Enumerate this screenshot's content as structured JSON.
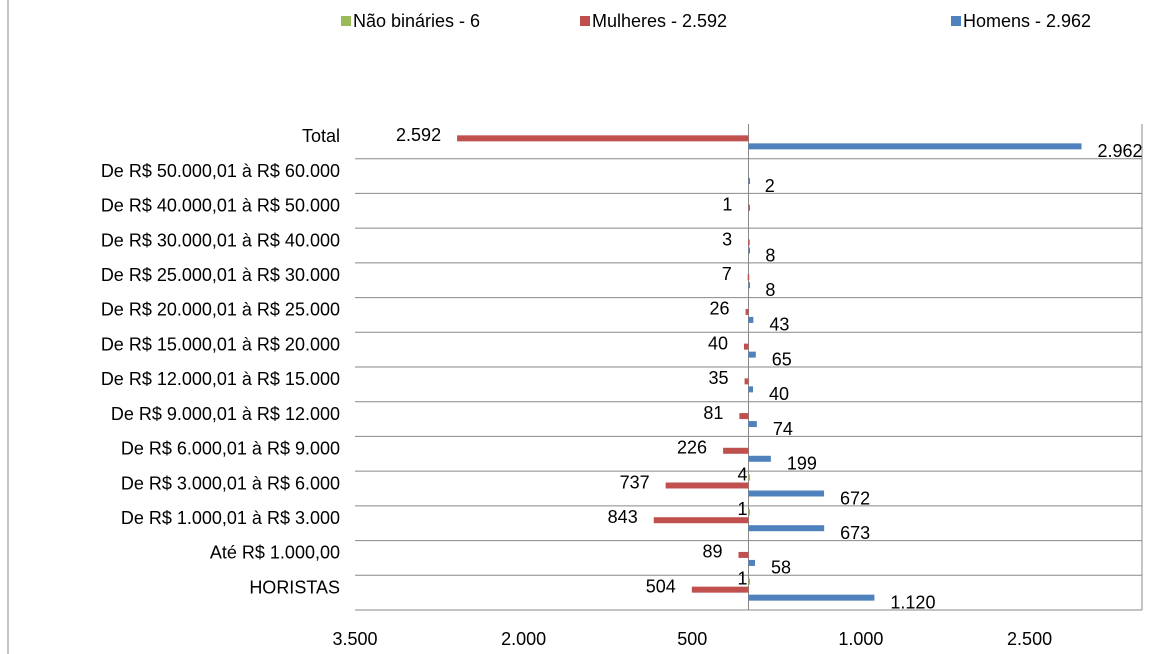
{
  "chart_data": {
    "type": "butterfly-bar",
    "categories": [
      "Total",
      "De R$ 50.000,01 à R$ 60.000",
      "De R$ 40.000,01 à R$ 50.000",
      "De R$ 30.000,01 à R$ 40.000",
      "De R$ 25.000,01 à R$ 30.000",
      "De R$ 20.000,01 à R$ 25.000",
      "De R$ 15.000,01 à R$ 20.000",
      "De R$ 12.000,01 à R$ 15.000",
      "De R$ 9.000,01 à R$ 12.000",
      "De R$ 6.000,01 à R$ 9.000",
      "De R$ 3.000,01 à R$ 6.000",
      "De R$ 1.000,01 à R$ 3.000",
      "Até R$ 1.000,00",
      "HORISTAS"
    ],
    "series": [
      {
        "name": "Não bináries - 6",
        "color": "#9bbb59",
        "values": [
          null,
          null,
          null,
          null,
          null,
          null,
          null,
          null,
          null,
          null,
          4,
          1,
          null,
          1
        ]
      },
      {
        "name": "Mulheres - 2.592",
        "color": "#c0504d",
        "values": [
          -2592,
          null,
          -1,
          -3,
          -7,
          -26,
          -40,
          -35,
          -81,
          -226,
          -737,
          -843,
          -89,
          -504
        ],
        "value_labels": [
          "2.592",
          null,
          "1",
          "3",
          "7",
          "26",
          "40",
          "35",
          "81",
          "226",
          "737",
          "843",
          "89",
          "504"
        ]
      },
      {
        "name": "Homens - 2.962",
        "color": "#4f81bd",
        "values": [
          2962,
          2,
          null,
          8,
          8,
          43,
          65,
          40,
          74,
          199,
          672,
          673,
          58,
          1120
        ],
        "value_labels": [
          "2.962",
          "2",
          null,
          "8",
          "8",
          "43",
          "65",
          "40",
          "74",
          "199",
          "672",
          "673",
          "58",
          "1.120"
        ]
      }
    ],
    "xlim": [
      -3500,
      3500
    ],
    "xticks": [
      {
        "value": -3500,
        "label": "3.500"
      },
      {
        "value": -2000,
        "label": "2.000"
      },
      {
        "value": -500,
        "label": "500"
      },
      {
        "value": 1000,
        "label": "1.000"
      },
      {
        "value": 2500,
        "label": "2.500"
      }
    ],
    "legend": "top"
  }
}
